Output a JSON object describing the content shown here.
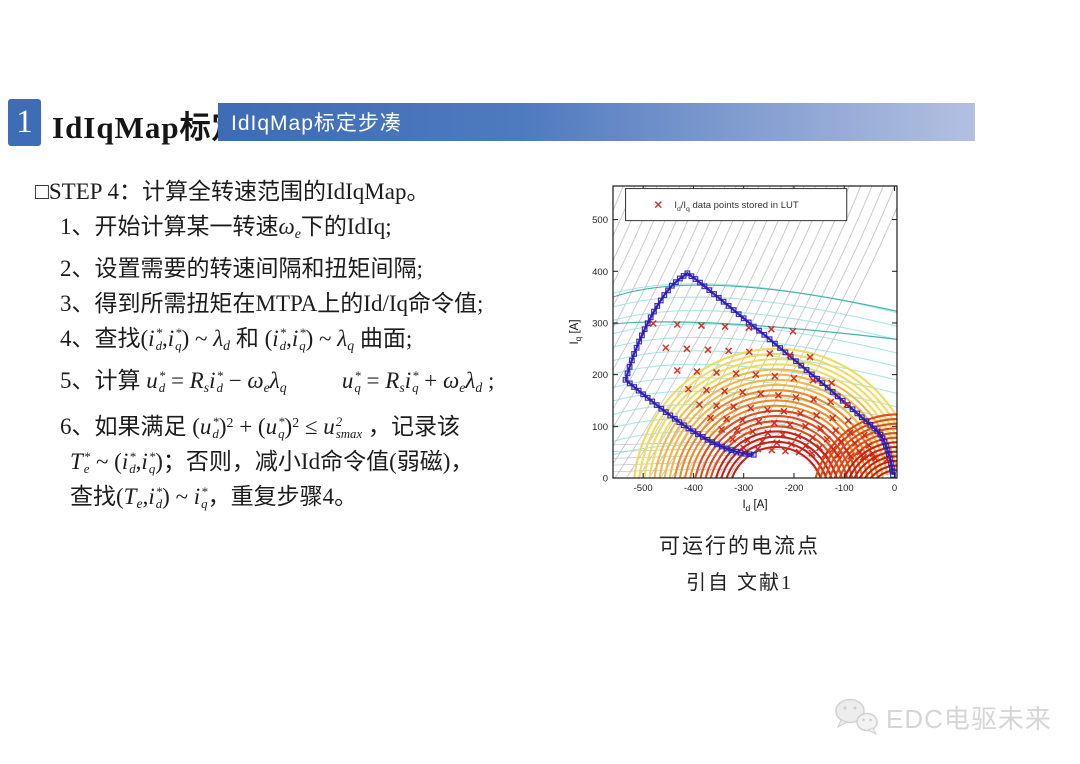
{
  "header": {
    "number": "1",
    "title": "IdIqMap标定",
    "banner": {
      "label": "IdIqMap标定步凑"
    }
  },
  "theme": {
    "accent_blue": "#3e6cb5",
    "banner_gradient_end": "#b3c0e0",
    "boundary_blue": "#2a1cb4",
    "lut_red": "#cf2318",
    "text_color": "#1c1c1c",
    "watermark_gray": "#d6d6d6"
  },
  "steps": {
    "lines": [
      {
        "ind": 0,
        "tokens": [
          [
            "n",
            "□STEP 4：计算全转速范围的IdIqMap。"
          ]
        ]
      },
      {
        "ind": 1,
        "tokens": [
          [
            "n",
            "1、开始计算某一转速"
          ],
          [
            "i",
            "ω"
          ],
          [
            "b",
            "e"
          ],
          [
            "n",
            "下的IdIq;"
          ]
        ]
      },
      {
        "ind": 1,
        "tokens": [
          [
            "n",
            "2、设置需要的转速间隔和扭矩间隔;"
          ]
        ]
      },
      {
        "ind": 1,
        "tokens": [
          [
            "n",
            "3、得到所需扭矩在MTPA上的Id/Iq命令值;"
          ]
        ]
      },
      {
        "ind": 1,
        "tokens": [
          [
            "n",
            "4、查找("
          ],
          [
            "ss",
            "i",
            "*",
            "d"
          ],
          [
            "n",
            ","
          ],
          [
            "ss",
            "i",
            "*",
            "q"
          ],
          [
            "n",
            ") ~ "
          ],
          [
            "i",
            "λ"
          ],
          [
            "b",
            "d"
          ],
          [
            "n",
            " 和 ("
          ],
          [
            "ss",
            "i",
            "*",
            "d"
          ],
          [
            "n",
            ","
          ],
          [
            "ss",
            "i",
            "*",
            "q"
          ],
          [
            "n",
            ") ~ "
          ],
          [
            "i",
            "λ"
          ],
          [
            "b",
            "q"
          ],
          [
            "n",
            " 曲面;"
          ]
        ]
      },
      {
        "ind": 1,
        "tokens": [
          [
            "n",
            "5、计算 "
          ],
          [
            "ss",
            "u",
            "*",
            "d"
          ],
          [
            "n",
            " = "
          ],
          [
            "i",
            "R"
          ],
          [
            "b",
            "s"
          ],
          [
            "ss",
            "i",
            "*",
            "d"
          ],
          [
            "n",
            " − "
          ],
          [
            "i",
            "ω"
          ],
          [
            "b",
            "e"
          ],
          [
            "i",
            "λ"
          ],
          [
            "b",
            "q"
          ],
          [
            "sp"
          ],
          [
            "ss",
            "u",
            "*",
            "q"
          ],
          [
            "n",
            " = "
          ],
          [
            "i",
            "R"
          ],
          [
            "b",
            "s"
          ],
          [
            "ss",
            "i",
            "*",
            "q"
          ],
          [
            "n",
            " + "
          ],
          [
            "i",
            "ω"
          ],
          [
            "b",
            "e"
          ],
          [
            "i",
            "λ"
          ],
          [
            "b",
            "d"
          ],
          [
            "n",
            " ;"
          ]
        ]
      },
      {
        "ind": 1,
        "tokens": [
          [
            "n",
            "6、如果满足 ("
          ],
          [
            "ss",
            "u",
            "*",
            "d"
          ],
          [
            "n",
            ")"
          ],
          [
            "p",
            "2"
          ],
          [
            "n",
            " + ("
          ],
          [
            "ss",
            "u",
            "*",
            "q"
          ],
          [
            "n",
            ")"
          ],
          [
            "p",
            "2"
          ],
          [
            "n",
            " ≤ "
          ],
          [
            "ss",
            "u",
            "2",
            "smax"
          ],
          [
            "n",
            "  ，记录该"
          ]
        ]
      },
      {
        "ind": 2,
        "tokens": [
          [
            "ss",
            "T",
            "*",
            "e"
          ],
          [
            "n",
            " ~ ("
          ],
          [
            "ss",
            "i",
            "*",
            "d"
          ],
          [
            "n",
            ","
          ],
          [
            "ss",
            "i",
            "*",
            "q"
          ],
          [
            "n",
            ")；否则，减小Id命令值(弱磁)，"
          ]
        ]
      },
      {
        "ind": 2,
        "tokens": [
          [
            "n",
            "查找("
          ],
          [
            "i",
            "T"
          ],
          [
            "b",
            "e"
          ],
          [
            "n",
            ","
          ],
          [
            "ss",
            "i",
            "*",
            "d"
          ],
          [
            "n",
            ") ~ "
          ],
          [
            "ss",
            "i",
            "*",
            "q"
          ],
          [
            "n",
            "，重复步骤4。"
          ]
        ]
      }
    ]
  },
  "figure": {
    "caption_line1": "可运行的电流点",
    "caption_line2": "引自 文献1"
  },
  "watermark": {
    "label": "EDC电驱未来",
    "icon": "wechat-icon"
  },
  "chart_data": {
    "type": "scatter",
    "title": "",
    "xlabel_plain": "Id [A]",
    "ylabel_plain": "Iq [A]",
    "xlabel_parts": [
      [
        "n",
        "I"
      ],
      [
        "s",
        "d"
      ],
      [
        "n",
        " [A]"
      ]
    ],
    "ylabel_parts": [
      [
        "n",
        "I"
      ],
      [
        "s",
        "q"
      ],
      [
        "n",
        " [A]"
      ]
    ],
    "xlim": [
      -560,
      5
    ],
    "ylim": [
      0,
      565
    ],
    "xticks": [
      -500,
      -400,
      -300,
      -200,
      -100,
      0
    ],
    "yticks": [
      0,
      100,
      200,
      300,
      400,
      500
    ],
    "grid": false,
    "legend": {
      "position": "top-left-inside",
      "marker": "x",
      "marker_color": "#cf2318",
      "label_plain": "Id/Iq data points stored in LUT",
      "label_parts": [
        [
          "n",
          "I"
        ],
        [
          "s",
          "d"
        ],
        [
          "n",
          "/I"
        ],
        [
          "s",
          "q"
        ],
        [
          "n",
          " data points stored in LUT"
        ]
      ]
    },
    "series": [
      {
        "name": "operating-boundary",
        "type": "line-square-markers",
        "color": "#2a1cb4",
        "points": [
          [
            -280,
            45
          ],
          [
            -297,
            47
          ],
          [
            -315,
            51
          ],
          [
            -334,
            57
          ],
          [
            -353,
            65
          ],
          [
            -372,
            74
          ],
          [
            -391,
            85
          ],
          [
            -410,
            96
          ],
          [
            -428,
            108
          ],
          [
            -446,
            121
          ],
          [
            -464,
            134
          ],
          [
            -482,
            148
          ],
          [
            -500,
            162
          ],
          [
            -518,
            176
          ],
          [
            -535,
            190
          ],
          [
            -527,
            215
          ],
          [
            -518,
            240
          ],
          [
            -508,
            264
          ],
          [
            -497,
            288
          ],
          [
            -485,
            311
          ],
          [
            -472,
            333
          ],
          [
            -458,
            354
          ],
          [
            -443,
            372
          ],
          [
            -427,
            386
          ],
          [
            -412,
            396
          ],
          [
            -396,
            385
          ],
          [
            -378,
            371
          ],
          [
            -359,
            356
          ],
          [
            -340,
            341
          ],
          [
            -320,
            325
          ],
          [
            -300,
            309
          ],
          [
            -280,
            293
          ],
          [
            -259,
            277
          ],
          [
            -238,
            260
          ],
          [
            -217,
            243
          ],
          [
            -196,
            226
          ],
          [
            -175,
            209
          ],
          [
            -154,
            192
          ],
          [
            -133,
            175
          ],
          [
            -113,
            158
          ],
          [
            -93,
            141
          ],
          [
            -74,
            125
          ],
          [
            -56,
            110
          ],
          [
            -40,
            96
          ],
          [
            -28,
            84
          ],
          [
            -20,
            70
          ],
          [
            -14,
            55
          ],
          [
            -9,
            38
          ],
          [
            -5,
            20
          ],
          [
            -3,
            6
          ]
        ]
      },
      {
        "name": "lut-points",
        "type": "x-markers",
        "color": "#cf2318",
        "points": [
          [
            -480,
            299
          ],
          [
            -432,
            297
          ],
          [
            -384,
            295
          ],
          [
            -337,
            293
          ],
          [
            -290,
            291
          ],
          [
            -245,
            288
          ],
          [
            -202,
            284
          ],
          [
            -455,
            252
          ],
          [
            -413,
            250
          ],
          [
            -371,
            248
          ],
          [
            -330,
            246
          ],
          [
            -289,
            244
          ],
          [
            -248,
            241
          ],
          [
            -208,
            238
          ],
          [
            -168,
            234
          ],
          [
            -432,
            208
          ],
          [
            -393,
            206
          ],
          [
            -354,
            204
          ],
          [
            -315,
            202
          ],
          [
            -276,
            200
          ],
          [
            -238,
            197
          ],
          [
            -200,
            193
          ],
          [
            -162,
            189
          ],
          [
            -125,
            184
          ],
          [
            -410,
            172
          ],
          [
            -374,
            170
          ],
          [
            -338,
            168
          ],
          [
            -302,
            166
          ],
          [
            -266,
            163
          ],
          [
            -231,
            160
          ],
          [
            -196,
            156
          ],
          [
            -161,
            152
          ],
          [
            -127,
            147
          ],
          [
            -95,
            142
          ],
          [
            -388,
            142
          ],
          [
            -354,
            140
          ],
          [
            -320,
            138
          ],
          [
            -286,
            135
          ],
          [
            -253,
            132
          ],
          [
            -220,
            129
          ],
          [
            -187,
            125
          ],
          [
            -155,
            121
          ],
          [
            -123,
            116
          ],
          [
            -92,
            111
          ],
          [
            -366,
            116
          ],
          [
            -334,
            114
          ],
          [
            -302,
            112
          ],
          [
            -270,
            109
          ],
          [
            -239,
            106
          ],
          [
            -208,
            103
          ],
          [
            -177,
            100
          ],
          [
            -147,
            96
          ],
          [
            -117,
            92
          ],
          [
            -88,
            88
          ],
          [
            -60,
            83
          ],
          [
            -344,
            94
          ],
          [
            -313,
            92
          ],
          [
            -282,
            90
          ],
          [
            -252,
            87
          ],
          [
            -222,
            84
          ],
          [
            -192,
            81
          ],
          [
            -163,
            78
          ],
          [
            -134,
            75
          ],
          [
            -106,
            71
          ],
          [
            -78,
            67
          ],
          [
            -51,
            63
          ],
          [
            -322,
            75
          ],
          [
            -292,
            73
          ],
          [
            -263,
            71
          ],
          [
            -234,
            68
          ],
          [
            -205,
            65
          ],
          [
            -177,
            62
          ],
          [
            -149,
            59
          ],
          [
            -122,
            56
          ],
          [
            -95,
            53
          ],
          [
            -69,
            50
          ],
          [
            -43,
            47
          ],
          [
            -300,
            58
          ],
          [
            -272,
            56
          ],
          [
            -244,
            54
          ],
          [
            -217,
            52
          ],
          [
            -190,
            50
          ],
          [
            -164,
            48
          ],
          [
            -138,
            46
          ],
          [
            -112,
            44
          ],
          [
            -87,
            42
          ],
          [
            -62,
            40
          ],
          [
            -38,
            38
          ],
          [
            -15,
            36
          ]
        ]
      }
    ],
    "contours": {
      "gray_diagonals": {
        "color": "#bcbcc6",
        "count": 27
      },
      "gray_bottom": {
        "color": "#b9b9c2",
        "count": 5
      },
      "cyan_arcs": {
        "color": "#8fdede",
        "dark_color": "#2fae9e",
        "count": 13
      },
      "warm_left": {
        "center": [
          -235,
          -35
        ],
        "r0": 95,
        "r1": 285,
        "step": 10,
        "colors": [
          "#c21807",
          "#e0450e",
          "#f08418",
          "#f2b43c",
          "#f0d957"
        ]
      },
      "warm_right": {
        "center": [
          5,
          -45
        ],
        "r0": 60,
        "r1": 170,
        "step": 9,
        "colors": [
          "#c21807",
          "#e0450e"
        ]
      }
    }
  }
}
